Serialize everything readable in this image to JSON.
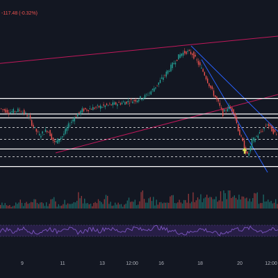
{
  "header": {
    "price_change": "-117.48 (-0.32%)"
  },
  "colors": {
    "background": "#131722",
    "up": "#26a69a",
    "down": "#ef5350",
    "horizontal_line": "#ffffff",
    "trendline_red": "#c2185b",
    "trendline_blue": "#2962ff",
    "rsi": "#7e57c2",
    "rsi_band": "#2a1f4a",
    "arrow": "#d4e157",
    "text": "#b2b5be"
  },
  "chart_data": [
    {
      "type": "candlestick",
      "title": "",
      "x_ticks": [
        "9",
        "11",
        "13",
        "12:00",
        "16",
        "18",
        "20",
        "12:00"
      ],
      "grid": false,
      "ylim": [
        0,
        100
      ],
      "price_path": [
        [
          0,
          48
        ],
        [
          15,
          46
        ],
        [
          30,
          47
        ],
        [
          42,
          44
        ],
        [
          50,
          38
        ],
        [
          58,
          34
        ],
        [
          70,
          37
        ],
        [
          80,
          30
        ],
        [
          92,
          34
        ],
        [
          100,
          39
        ],
        [
          110,
          44
        ],
        [
          120,
          47
        ],
        [
          135,
          48
        ],
        [
          150,
          49
        ],
        [
          165,
          50
        ],
        [
          180,
          51
        ],
        [
          195,
          52
        ],
        [
          210,
          54
        ],
        [
          220,
          57
        ],
        [
          232,
          62
        ],
        [
          245,
          68
        ],
        [
          255,
          73
        ],
        [
          262,
          76
        ],
        [
          270,
          77
        ],
        [
          278,
          76
        ],
        [
          285,
          72
        ],
        [
          295,
          66
        ],
        [
          305,
          58
        ],
        [
          315,
          51
        ],
        [
          322,
          45
        ],
        [
          330,
          49
        ],
        [
          338,
          46
        ],
        [
          345,
          36
        ],
        [
          352,
          29
        ],
        [
          358,
          23
        ],
        [
          364,
          31
        ],
        [
          372,
          34
        ],
        [
          380,
          37
        ],
        [
          386,
          40
        ],
        [
          392,
          37
        ],
        [
          400,
          34
        ]
      ],
      "horizontal_levels": [
        {
          "value": 53,
          "style": "solid"
        },
        {
          "value": 45,
          "style": "solid"
        },
        {
          "value": 43,
          "style": "solid"
        },
        {
          "value": 38,
          "style": "dashed"
        },
        {
          "value": 32,
          "style": "dashed"
        },
        {
          "value": 27,
          "style": "solid"
        },
        {
          "value": 23,
          "style": "dashed"
        },
        {
          "value": 18,
          "style": "solid"
        }
      ],
      "trendlines": [
        {
          "color": "red",
          "from": [
            0,
            71
          ],
          "to": [
            400,
            85
          ]
        },
        {
          "color": "red",
          "from": [
            80,
            25
          ],
          "to": [
            400,
            55
          ]
        },
        {
          "color": "blue",
          "from": [
            275,
            80
          ],
          "to": [
            400,
            36
          ]
        },
        {
          "color": "blue",
          "from": [
            290,
            73
          ],
          "to": [
            385,
            15
          ]
        }
      ],
      "annotations": [
        {
          "type": "up-arrow",
          "x": 352,
          "value": 26
        }
      ]
    },
    {
      "type": "bar",
      "title": "",
      "series": [
        {
          "values": [
            3,
            2,
            4,
            3,
            6,
            4,
            3,
            5,
            2,
            4,
            3,
            7,
            5,
            3,
            4,
            6,
            3,
            2,
            5,
            4,
            8,
            5,
            4,
            3,
            6,
            4,
            5,
            7,
            9,
            6,
            5,
            8,
            10,
            7,
            6,
            5,
            8,
            6,
            4,
            5
          ]
        }
      ]
    },
    {
      "type": "line",
      "title": "",
      "ylim": [
        0,
        100
      ],
      "band": [
        30,
        70
      ],
      "series": [
        {
          "values": [
            50,
            55,
            45,
            60,
            52,
            40,
            48,
            58,
            46,
            62,
            54,
            44,
            50,
            57,
            49,
            61,
            53,
            47,
            56,
            60,
            52,
            58,
            64,
            55,
            50,
            45,
            38,
            48,
            56,
            52,
            42,
            36,
            48,
            58,
            54,
            60,
            52,
            47,
            55,
            49
          ]
        }
      ]
    }
  ]
}
